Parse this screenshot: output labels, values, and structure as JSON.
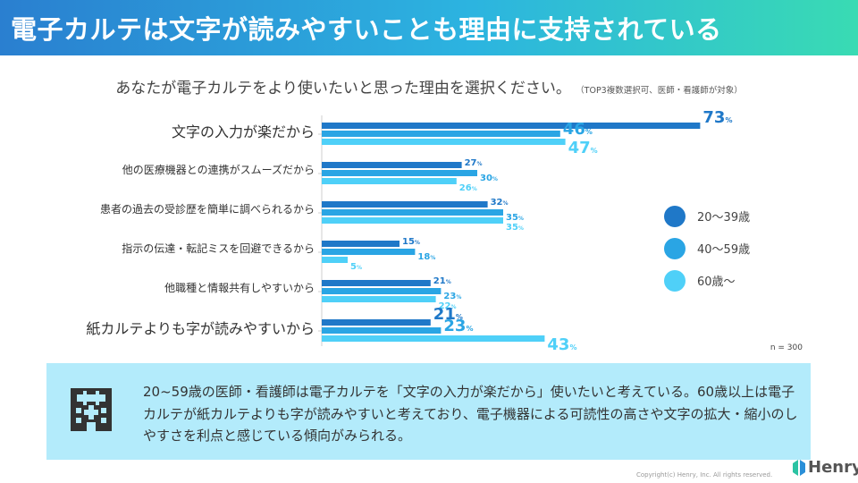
{
  "header": {
    "title": "電子カルテは文字が読みやすいことも理由に支持されている"
  },
  "question": {
    "text": "あなたが電子カルテをより使いたいと思った理由を選択ください。",
    "note": "（TOP3複数選択可、医師・看護師が対象）"
  },
  "chart_data": {
    "type": "bar",
    "orientation": "horizontal",
    "categories": [
      "文字の入力が楽だから",
      "他の医療機器との連携がスムーズだから",
      "患者の過去の受診歴を簡単に調べられるから",
      "指示の伝達・転記ミスを回避できるから",
      "他職種と情報共有しやすいから",
      "紙カルテよりも字が読みやすいから"
    ],
    "emphasized_categories": [
      0,
      5
    ],
    "series": [
      {
        "name": "20〜39歳",
        "color": "#1f78c8",
        "values": [
          73,
          27,
          32,
          15,
          21,
          21
        ]
      },
      {
        "name": "40〜59歳",
        "color": "#2aa5e4",
        "values": [
          46,
          30,
          35,
          18,
          23,
          23
        ]
      },
      {
        "name": "60歳〜",
        "color": "#4fd0f8",
        "values": [
          47,
          26,
          35,
          5,
          22,
          43
        ]
      }
    ],
    "unit": "%",
    "sample_size": "n = 300",
    "legend_position": "right"
  },
  "summary": {
    "text": "20~59歳の医師・看護師は電子カルテを「文字の入力が楽だから」使いたいと考えている。60歳以上は電子カルテが紙カルテよりも字が読みやすいと考えており、電子機器による可読性の高さや文字の拡大・縮小のしやすさを利点と感じている傾向がみられる。",
    "icon": "hospital-icon"
  },
  "footer": {
    "copyright": "Copyright(c) Henry, Inc. All rights reserved.",
    "logo_text": "Henry",
    "logo_icon": "henry-logo-icon"
  }
}
